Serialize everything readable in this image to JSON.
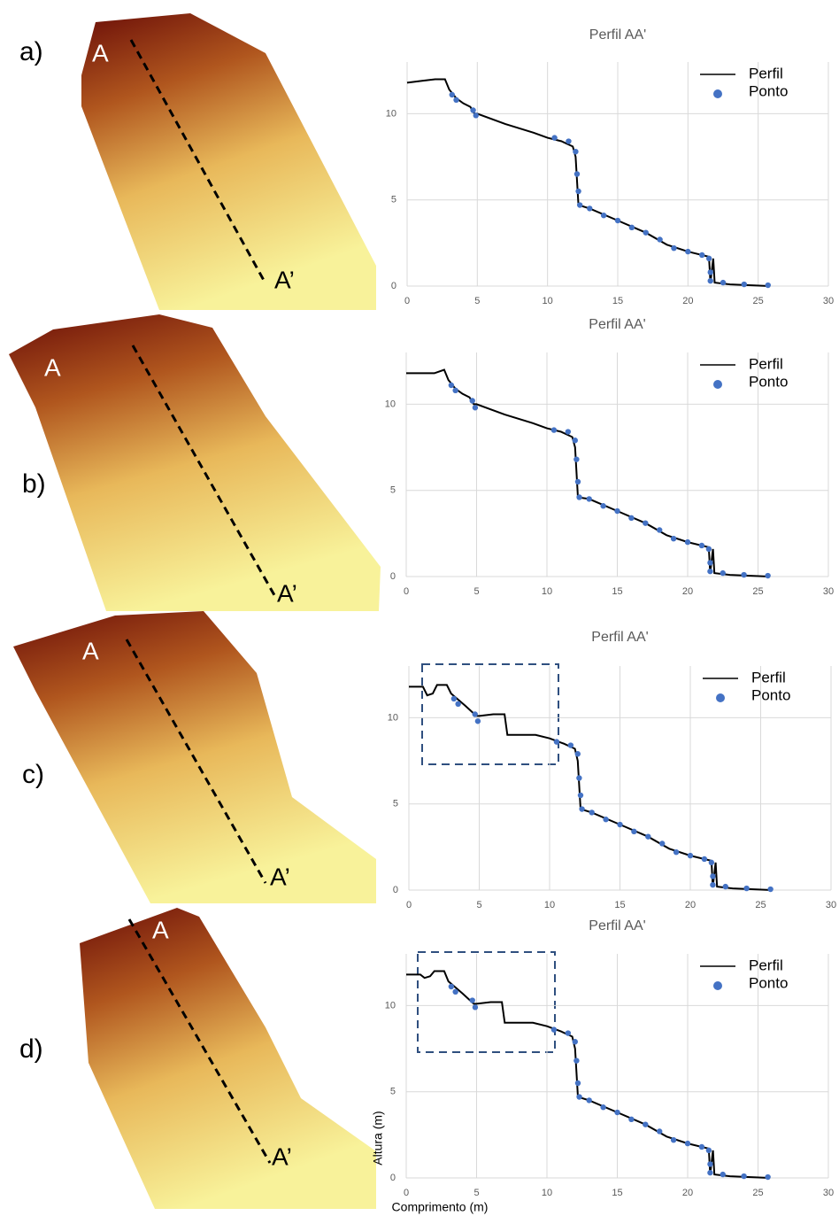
{
  "panels": [
    {
      "label": "a)",
      "start": "A",
      "end": "A’"
    },
    {
      "label": "b)",
      "start": "A",
      "end": "A’"
    },
    {
      "label": "c)",
      "start": "A",
      "end": "A’"
    },
    {
      "label": "d)",
      "start": "A",
      "end": "A’"
    }
  ],
  "chart_data": [
    {
      "type": "line",
      "title": "Perfil AA'",
      "xlim": [
        0,
        30
      ],
      "ylim": [
        0,
        13
      ],
      "xticks": [
        0,
        5,
        10,
        15,
        20,
        25,
        30
      ],
      "yticks": [
        0,
        5,
        10
      ],
      "grid": true,
      "legend": "upper right",
      "series": [
        {
          "name": "Perfil",
          "color": "#000000",
          "type": "line",
          "x": [
            0,
            1,
            2,
            2.7,
            3,
            3.5,
            4,
            4.5,
            4.8,
            5,
            7,
            9,
            10,
            11,
            11.8,
            12,
            12.2,
            13,
            15,
            17,
            18.5,
            20,
            21.5,
            21.6,
            21.8,
            21.9,
            23,
            25.8
          ],
          "values": [
            11.8,
            11.9,
            12,
            12,
            11.4,
            10.9,
            10.6,
            10.4,
            10,
            10,
            9.4,
            8.9,
            8.6,
            8.4,
            8.1,
            7.5,
            4.7,
            4.5,
            3.8,
            3.1,
            2.4,
            2,
            1.7,
            0.2,
            1.6,
            0.2,
            0.1,
            0
          ]
        },
        {
          "name": "Ponto",
          "color": "#4472c4",
          "type": "scatter",
          "x": [
            3.2,
            3.5,
            4.7,
            4.9,
            10.5,
            11.5,
            12,
            12.1,
            12.2,
            12.3,
            13,
            14,
            15,
            16,
            17,
            18,
            19,
            20,
            21,
            21.5,
            21.6,
            21.6,
            22.5,
            24,
            25.7
          ],
          "values": [
            11.1,
            10.8,
            10.2,
            9.9,
            8.6,
            8.4,
            7.8,
            6.5,
            5.5,
            4.7,
            4.5,
            4.1,
            3.8,
            3.4,
            3.1,
            2.7,
            2.2,
            2,
            1.8,
            1.6,
            0.8,
            0.3,
            0.2,
            0.1,
            0.05
          ]
        }
      ]
    },
    {
      "type": "line",
      "title": "Perfil AA'",
      "xlim": [
        0,
        30
      ],
      "ylim": [
        0,
        13
      ],
      "xticks": [
        0,
        5,
        10,
        15,
        20,
        25,
        30
      ],
      "yticks": [
        0,
        5,
        10
      ],
      "grid": true,
      "legend": "upper right",
      "series": [
        {
          "name": "Perfil",
          "color": "#000000",
          "type": "line",
          "x": [
            0,
            1,
            2,
            2.7,
            3,
            3.5,
            4,
            4.5,
            4.8,
            5,
            7,
            9,
            10,
            11,
            11.8,
            12,
            12.2,
            13,
            15,
            17,
            18.5,
            20,
            21.5,
            21.6,
            21.8,
            21.9,
            23,
            25.8
          ],
          "values": [
            11.8,
            11.8,
            11.8,
            12,
            11.4,
            10.9,
            10.6,
            10.4,
            10,
            10,
            9.4,
            8.9,
            8.6,
            8.4,
            8.1,
            7.5,
            4.6,
            4.5,
            3.8,
            3.1,
            2.4,
            2,
            1.7,
            0.2,
            1.6,
            0.2,
            0.1,
            0
          ]
        },
        {
          "name": "Ponto",
          "color": "#4472c4",
          "type": "scatter",
          "x": [
            3.2,
            3.5,
            4.7,
            4.9,
            10.5,
            11.5,
            12,
            12.1,
            12.2,
            12.3,
            13,
            14,
            15,
            16,
            17,
            18,
            19,
            20,
            21,
            21.5,
            21.6,
            21.6,
            22.5,
            24,
            25.7
          ],
          "values": [
            11.1,
            10.8,
            10.2,
            9.8,
            8.5,
            8.4,
            7.9,
            6.8,
            5.5,
            4.6,
            4.5,
            4.1,
            3.8,
            3.4,
            3.1,
            2.7,
            2.2,
            2,
            1.8,
            1.6,
            0.8,
            0.3,
            0.2,
            0.1,
            0.05
          ]
        }
      ]
    },
    {
      "type": "line",
      "title": "Perfil AA'",
      "xlim": [
        0,
        30
      ],
      "ylim": [
        0,
        13
      ],
      "xticks": [
        0,
        5,
        10,
        15,
        20,
        25,
        30
      ],
      "yticks": [
        0,
        5,
        10
      ],
      "grid": true,
      "legend": "upper right",
      "series": [
        {
          "name": "Perfil",
          "color": "#000000",
          "type": "line",
          "x": [
            0,
            1,
            1.3,
            1.7,
            2,
            2.7,
            3,
            4,
            4.8,
            5,
            6,
            6.8,
            7,
            9,
            10,
            11,
            11.8,
            12,
            12.2,
            13,
            15,
            17,
            18.5,
            20,
            21.5,
            21.6,
            21.8,
            21.9,
            23,
            25.8
          ],
          "values": [
            11.8,
            11.8,
            11.3,
            11.4,
            11.9,
            11.9,
            11.4,
            10.7,
            10.1,
            10.1,
            10.2,
            10.2,
            9,
            9,
            8.8,
            8.5,
            8.2,
            7.5,
            4.7,
            4.5,
            3.8,
            3.1,
            2.4,
            2,
            1.7,
            0.2,
            1.6,
            0.2,
            0.1,
            0
          ]
        },
        {
          "name": "Ponto",
          "color": "#4472c4",
          "type": "scatter",
          "x": [
            3.2,
            3.5,
            4.7,
            4.9,
            10.5,
            11.5,
            12,
            12.1,
            12.2,
            12.3,
            13,
            14,
            15,
            16,
            17,
            18,
            19,
            20,
            21,
            21.5,
            21.6,
            21.6,
            22.5,
            24,
            25.7
          ],
          "values": [
            11.1,
            10.8,
            10.2,
            9.8,
            8.6,
            8.4,
            7.9,
            6.5,
            5.5,
            4.7,
            4.5,
            4.1,
            3.8,
            3.4,
            3.1,
            2.7,
            2.2,
            2,
            1.8,
            1.6,
            0.8,
            0.3,
            0.2,
            0.1,
            0.05
          ]
        }
      ]
    },
    {
      "type": "line",
      "title": "Perfil AA'",
      "xlabel": "Comprimento (m)",
      "ylabel": "Altura (m)",
      "xlim": [
        0,
        30
      ],
      "ylim": [
        0,
        13
      ],
      "xticks": [
        0,
        5,
        10,
        15,
        20,
        25,
        30
      ],
      "yticks": [
        0,
        5,
        10
      ],
      "grid": true,
      "legend": "upper right",
      "series": [
        {
          "name": "Perfil",
          "color": "#000000",
          "type": "line",
          "x": [
            0,
            1,
            1.3,
            1.7,
            2,
            2.7,
            3,
            4,
            4.8,
            5,
            6,
            6.8,
            7,
            9,
            10,
            11,
            11.8,
            12,
            12.2,
            13,
            15,
            17,
            18.5,
            20,
            21.5,
            21.6,
            21.8,
            21.9,
            23,
            25.8
          ],
          "values": [
            11.8,
            11.8,
            11.6,
            11.7,
            12,
            12,
            11.4,
            10.7,
            10.1,
            10.1,
            10.2,
            10.2,
            9,
            9,
            8.8,
            8.5,
            8.2,
            7.5,
            4.7,
            4.5,
            3.8,
            3.1,
            2.4,
            2,
            1.7,
            0.2,
            1.6,
            0.2,
            0.1,
            0
          ]
        },
        {
          "name": "Ponto",
          "color": "#4472c4",
          "type": "scatter",
          "x": [
            3.2,
            3.5,
            4.7,
            4.9,
            10.5,
            11.5,
            12,
            12.1,
            12.2,
            12.3,
            13,
            14,
            15,
            16,
            17,
            18,
            19,
            20,
            21,
            21.5,
            21.6,
            21.6,
            22.5,
            24,
            25.7
          ],
          "values": [
            11.1,
            10.8,
            10.3,
            9.9,
            8.6,
            8.4,
            7.9,
            6.8,
            5.5,
            4.7,
            4.5,
            4.1,
            3.8,
            3.4,
            3.1,
            2.7,
            2.2,
            2,
            1.8,
            1.6,
            0.8,
            0.3,
            0.2,
            0.1,
            0.05
          ]
        }
      ]
    }
  ]
}
